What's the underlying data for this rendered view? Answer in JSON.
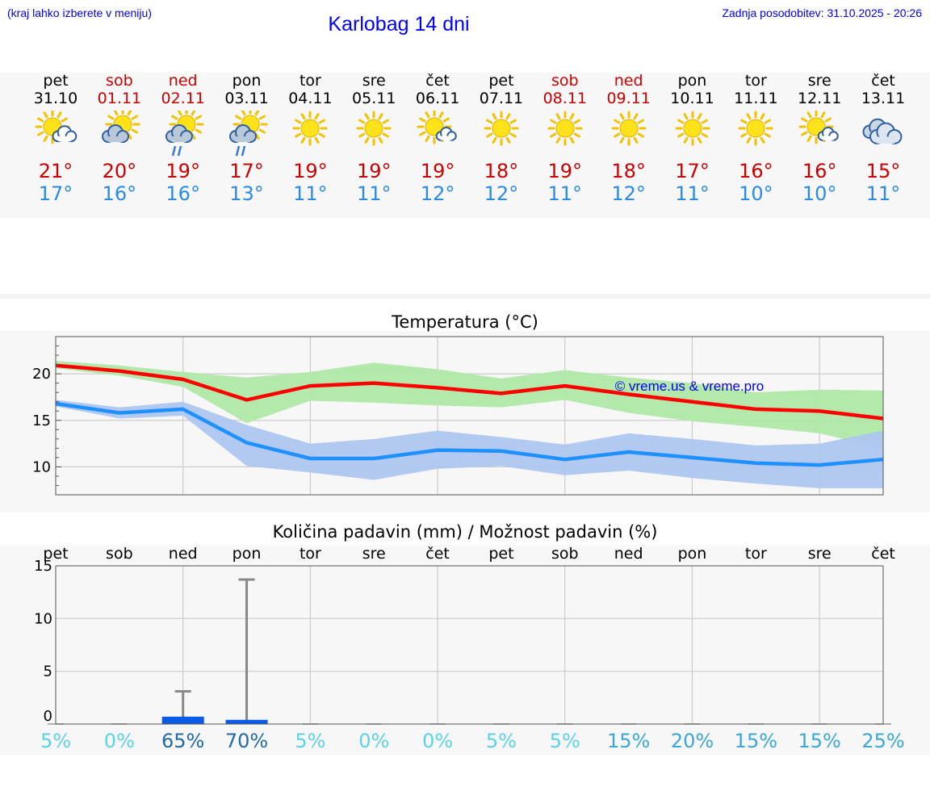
{
  "header": {
    "hint": "(kraj lahko izberete v meniju)",
    "title": "Karlobag 14 dni",
    "updated": "Zadnja posodobitev: 31.10.2025 - 20:26"
  },
  "colors": {
    "weekday": "#000000",
    "weekend": "#cc0000",
    "tmax": "#cc0000",
    "tmin": "#2a8ae8",
    "max_band": "#b0e8a8",
    "min_band": "#aec6f0",
    "max_line": "#ff0000",
    "min_line": "#1e90ff",
    "rain_bar": "#0a5ce6",
    "prob_low": "#5bd3e6",
    "prob_mid": "#3aa8d8",
    "prob_high": "#1f6aa8"
  },
  "days": [
    {
      "name": "pet",
      "date": "31.10",
      "weekend": false,
      "icon": "sun-cloud-icon",
      "tmax": "21°",
      "tmin": "17°"
    },
    {
      "name": "sob",
      "date": "01.11",
      "weekend": true,
      "icon": "sun-cloud-dark-icon",
      "tmax": "20°",
      "tmin": "16°"
    },
    {
      "name": "ned",
      "date": "02.11",
      "weekend": true,
      "icon": "sun-rain-icon",
      "tmax": "19°",
      "tmin": "16°"
    },
    {
      "name": "pon",
      "date": "03.11",
      "weekend": false,
      "icon": "sun-rain-icon",
      "tmax": "17°",
      "tmin": "13°"
    },
    {
      "name": "tor",
      "date": "04.11",
      "weekend": false,
      "icon": "sun-icon",
      "tmax": "19°",
      "tmin": "11°"
    },
    {
      "name": "sre",
      "date": "05.11",
      "weekend": false,
      "icon": "sun-icon",
      "tmax": "19°",
      "tmin": "11°"
    },
    {
      "name": "čet",
      "date": "06.11",
      "weekend": false,
      "icon": "sun-small-cloud-icon",
      "tmax": "19°",
      "tmin": "12°"
    },
    {
      "name": "pet",
      "date": "07.11",
      "weekend": false,
      "icon": "sun-icon",
      "tmax": "18°",
      "tmin": "12°"
    },
    {
      "name": "sob",
      "date": "08.11",
      "weekend": true,
      "icon": "sun-icon",
      "tmax": "19°",
      "tmin": "11°"
    },
    {
      "name": "ned",
      "date": "09.11",
      "weekend": true,
      "icon": "sun-icon",
      "tmax": "18°",
      "tmin": "12°"
    },
    {
      "name": "pon",
      "date": "10.11",
      "weekend": false,
      "icon": "sun-icon",
      "tmax": "17°",
      "tmin": "11°"
    },
    {
      "name": "tor",
      "date": "11.11",
      "weekend": false,
      "icon": "sun-icon",
      "tmax": "16°",
      "tmin": "10°"
    },
    {
      "name": "sre",
      "date": "12.11",
      "weekend": false,
      "icon": "sun-small-cloud-icon",
      "tmax": "16°",
      "tmin": "10°"
    },
    {
      "name": "čet",
      "date": "13.11",
      "weekend": false,
      "icon": "cloudy-icon",
      "tmax": "15°",
      "tmin": "11°"
    }
  ],
  "chart_data": [
    {
      "type": "line",
      "title": "Temperatura (°C)",
      "watermark": "© vreme.us & vreme.pro",
      "ylim": [
        7,
        24
      ],
      "yticks": [
        10,
        15,
        20
      ],
      "grid": true,
      "categories": [
        "pet",
        "sob",
        "ned",
        "pon",
        "tor",
        "sre",
        "čet",
        "pet",
        "sob",
        "ned",
        "pon",
        "tor",
        "sre",
        "čet"
      ],
      "series": [
        {
          "name": "max",
          "values": [
            20.9,
            20.3,
            19.4,
            17.2,
            18.7,
            19.0,
            18.5,
            17.9,
            18.7,
            17.8,
            17.0,
            16.2,
            16.0,
            15.2
          ]
        },
        {
          "name": "min",
          "values": [
            16.8,
            15.8,
            16.2,
            12.6,
            10.9,
            10.9,
            11.8,
            11.7,
            10.8,
            11.6,
            11.0,
            10.4,
            10.2,
            10.8
          ]
        }
      ],
      "bands": [
        {
          "name": "max-range",
          "low": [
            20.6,
            19.8,
            18.6,
            14.7,
            17.1,
            16.9,
            16.6,
            16.4,
            17.2,
            15.8,
            14.9,
            14.3,
            13.6,
            12.0
          ],
          "high": [
            21.4,
            20.9,
            20.2,
            19.6,
            20.2,
            21.2,
            20.5,
            19.5,
            20.4,
            19.6,
            19.0,
            18.0,
            18.3,
            18.2
          ]
        },
        {
          "name": "min-range",
          "low": [
            16.5,
            15.2,
            15.5,
            10.1,
            9.4,
            8.6,
            9.8,
            10.1,
            9.1,
            9.6,
            8.8,
            8.2,
            7.7,
            7.7
          ],
          "high": [
            17.2,
            16.4,
            17.0,
            14.5,
            12.5,
            13.0,
            13.9,
            13.2,
            12.4,
            13.6,
            13.0,
            12.3,
            12.5,
            13.9
          ]
        }
      ]
    },
    {
      "type": "bar",
      "title": "Količina padavin (mm) / Možnost padavin (%)",
      "ylim": [
        0,
        15
      ],
      "yticks": [
        0,
        5,
        10,
        15
      ],
      "grid": true,
      "categories": [
        "pet",
        "sob",
        "ned",
        "pon",
        "tor",
        "sre",
        "čet",
        "pet",
        "sob",
        "ned",
        "pon",
        "tor",
        "sre",
        "čet"
      ],
      "values": [
        0,
        0,
        0.7,
        0.4,
        0,
        0,
        0,
        0,
        0,
        0,
        0,
        0,
        0,
        0
      ],
      "error_high": [
        0,
        0,
        3.1,
        13.7,
        0,
        0,
        0,
        0,
        0,
        0,
        0,
        0,
        0,
        0
      ],
      "probability": [
        "5%",
        "0%",
        "65%",
        "70%",
        "5%",
        "0%",
        "0%",
        "5%",
        "5%",
        "15%",
        "20%",
        "15%",
        "15%",
        "25%"
      ]
    }
  ]
}
